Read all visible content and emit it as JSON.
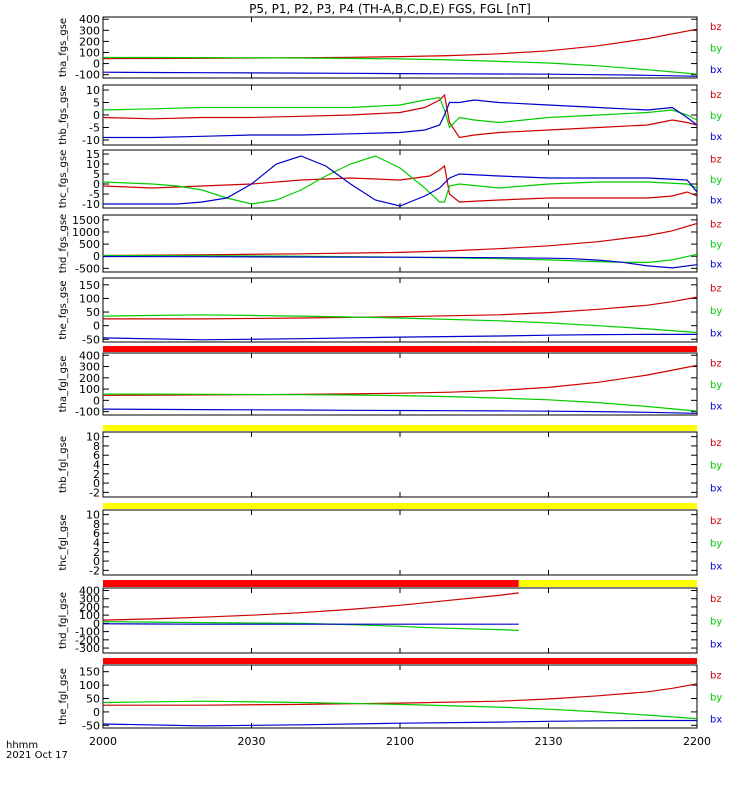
{
  "title": "P5, P1, P2, P3, P4 (TH-A,B,C,D,E) FGS, FGL [nT]",
  "time_axis": {
    "label_line1": "hhmm",
    "label_line2": "2021 Oct 17",
    "range_hhmm": [
      "2000",
      "2200"
    ],
    "tick_labels": [
      "2000",
      "2030",
      "2100",
      "2130",
      "2200"
    ],
    "ticks_min": [
      0,
      30,
      60,
      90,
      120
    ]
  },
  "colors": {
    "bz": "#cc0000",
    "by": "#00cc00",
    "bx": "#0000cc",
    "red_bar": "#ff0000",
    "yellow_bar": "#ffff00",
    "frame": "#000000"
  },
  "component_labels": [
    "bz",
    "by",
    "bx"
  ],
  "status_bars": [
    {
      "before_panel": 5,
      "segments": [
        {
          "from": 0,
          "to": 120,
          "color": "red_bar"
        }
      ]
    },
    {
      "before_panel": 6,
      "segments": [
        {
          "from": 0,
          "to": 120,
          "color": "yellow_bar"
        }
      ]
    },
    {
      "before_panel": 7,
      "segments": [
        {
          "from": 0,
          "to": 120,
          "color": "yellow_bar"
        }
      ]
    },
    {
      "before_panel": 8,
      "segments": [
        {
          "from": 0,
          "to": 84,
          "color": "red_bar"
        },
        {
          "from": 84,
          "to": 120,
          "color": "yellow_bar"
        }
      ]
    },
    {
      "before_panel": 9,
      "segments": [
        {
          "from": 0,
          "to": 120,
          "color": "red_bar"
        }
      ]
    }
  ],
  "chart_data": [
    {
      "type": "line",
      "ylabel": "tha_fgs_gse",
      "ylim": [
        -130,
        420
      ],
      "yticks": [
        400,
        300,
        200,
        100,
        0,
        -100
      ],
      "series": [
        {
          "name": "bz",
          "x": [
            0,
            10,
            20,
            30,
            40,
            50,
            60,
            70,
            80,
            90,
            100,
            110,
            120
          ],
          "y": [
            45,
            46,
            48,
            50,
            53,
            57,
            63,
            72,
            88,
            115,
            160,
            225,
            310
          ]
        },
        {
          "name": "by",
          "x": [
            0,
            10,
            20,
            30,
            40,
            50,
            60,
            70,
            80,
            90,
            100,
            110,
            120
          ],
          "y": [
            55,
            55,
            54,
            52,
            50,
            47,
            42,
            33,
            20,
            5,
            -20,
            -55,
            -95
          ]
        },
        {
          "name": "bx",
          "x": [
            0,
            10,
            20,
            30,
            40,
            50,
            60,
            70,
            80,
            90,
            100,
            110,
            120
          ],
          "y": [
            -78,
            -80,
            -82,
            -84,
            -86,
            -88,
            -90,
            -92,
            -94,
            -96,
            -100,
            -106,
            -115
          ]
        }
      ]
    },
    {
      "type": "line",
      "ylabel": "thb_fgs_gse",
      "ylim": [
        -12,
        12
      ],
      "yticks": [
        10,
        5,
        0,
        -5,
        -10
      ],
      "series": [
        {
          "name": "bz",
          "x": [
            0,
            10,
            20,
            30,
            40,
            50,
            60,
            65,
            68,
            69,
            70,
            72,
            75,
            80,
            90,
            100,
            110,
            115,
            118,
            120
          ],
          "y": [
            -1,
            -1.5,
            -1,
            -1,
            -0.5,
            0,
            1,
            3,
            6,
            8,
            -3,
            -9,
            -8,
            -7,
            -6,
            -5,
            -4,
            -2,
            -3,
            -4
          ]
        },
        {
          "name": "by",
          "x": [
            0,
            10,
            20,
            30,
            40,
            50,
            60,
            65,
            68,
            69,
            70,
            72,
            75,
            80,
            90,
            100,
            110,
            115,
            118,
            120
          ],
          "y": [
            2,
            2.5,
            3,
            3,
            3,
            3,
            4,
            6,
            7,
            2,
            -5,
            -1,
            -2,
            -3,
            -1,
            0,
            1,
            2,
            0,
            -2
          ]
        },
        {
          "name": "bx",
          "x": [
            0,
            10,
            20,
            30,
            40,
            50,
            60,
            65,
            68,
            69,
            70,
            72,
            75,
            80,
            90,
            100,
            110,
            115,
            118,
            120
          ],
          "y": [
            -9,
            -9,
            -8.5,
            -8,
            -8,
            -7.5,
            -7,
            -6,
            -4,
            0,
            5,
            5,
            6,
            5,
            4,
            3,
            2,
            3,
            -1,
            -4
          ]
        }
      ]
    },
    {
      "type": "line",
      "ylabel": "thc_fgs_gse",
      "ylim": [
        -12,
        17
      ],
      "yticks": [
        15,
        10,
        5,
        0,
        -5,
        -10
      ],
      "series": [
        {
          "name": "bz",
          "x": [
            0,
            10,
            20,
            30,
            40,
            50,
            60,
            66,
            68,
            69,
            70,
            72,
            80,
            90,
            100,
            110,
            115,
            118,
            120
          ],
          "y": [
            -1,
            -2,
            -1,
            0,
            2,
            3,
            2,
            4,
            7,
            9,
            -5,
            -9,
            -8,
            -7,
            -7,
            -7,
            -6,
            -4,
            -6
          ]
        },
        {
          "name": "by",
          "x": [
            0,
            5,
            10,
            15,
            20,
            25,
            30,
            35,
            40,
            45,
            50,
            55,
            60,
            65,
            68,
            69,
            70,
            72,
            80,
            90,
            100,
            110,
            118,
            120
          ],
          "y": [
            1,
            0.5,
            0,
            -1,
            -3,
            -7,
            -10,
            -8,
            -3,
            4,
            10,
            14,
            8,
            -2,
            -9,
            -9,
            -1,
            0,
            -2,
            0,
            1,
            1,
            0,
            -2
          ]
        },
        {
          "name": "bx",
          "x": [
            0,
            10,
            15,
            20,
            25,
            30,
            35,
            40,
            45,
            50,
            55,
            60,
            65,
            68,
            70,
            72,
            80,
            90,
            100,
            110,
            118,
            120
          ],
          "y": [
            -10,
            -10,
            -10,
            -9,
            -7,
            0,
            10,
            14,
            9,
            0,
            -8,
            -11,
            -6,
            -2,
            3,
            5,
            4,
            3,
            3,
            3,
            2,
            -4
          ]
        }
      ]
    },
    {
      "type": "line",
      "ylabel": "thd_fgs_gse",
      "ylim": [
        -650,
        1700
      ],
      "yticks": [
        1500,
        1000,
        500,
        0,
        -500
      ],
      "series": [
        {
          "name": "bz",
          "x": [
            0,
            20,
            40,
            60,
            70,
            80,
            90,
            100,
            110,
            115,
            120
          ],
          "y": [
            30,
            60,
            100,
            160,
            220,
            310,
            430,
            600,
            850,
            1050,
            1350
          ]
        },
        {
          "name": "by",
          "x": [
            0,
            20,
            40,
            60,
            80,
            90,
            100,
            105,
            110,
            115,
            120
          ],
          "y": [
            30,
            20,
            0,
            -40,
            -100,
            -150,
            -220,
            -250,
            -260,
            -150,
            80
          ]
        },
        {
          "name": "bx",
          "x": [
            0,
            20,
            40,
            60,
            80,
            90,
            95,
            100,
            105,
            110,
            115,
            120
          ],
          "y": [
            -10,
            -20,
            -30,
            -40,
            -60,
            -80,
            -100,
            -160,
            -250,
            -400,
            -480,
            -350
          ]
        }
      ]
    },
    {
      "type": "line",
      "ylabel": "the_fgs_gse",
      "ylim": [
        -60,
        175
      ],
      "yticks": [
        150,
        100,
        50,
        0,
        -50
      ],
      "series": [
        {
          "name": "bz",
          "x": [
            0,
            20,
            40,
            60,
            80,
            90,
            100,
            110,
            115,
            120
          ],
          "y": [
            25,
            25,
            28,
            33,
            40,
            48,
            60,
            75,
            88,
            105
          ]
        },
        {
          "name": "by",
          "x": [
            0,
            20,
            40,
            60,
            80,
            90,
            100,
            110,
            120
          ],
          "y": [
            35,
            40,
            35,
            28,
            18,
            10,
            0,
            -12,
            -25
          ]
        },
        {
          "name": "bx",
          "x": [
            0,
            20,
            40,
            60,
            80,
            90,
            100,
            110,
            120
          ],
          "y": [
            -45,
            -52,
            -48,
            -42,
            -38,
            -35,
            -33,
            -32,
            -32
          ]
        }
      ]
    },
    {
      "type": "line",
      "ylabel": "tha_fgl_gse",
      "ylim": [
        -130,
        420
      ],
      "yticks": [
        400,
        300,
        200,
        100,
        0,
        -100
      ],
      "series": [
        {
          "name": "bz",
          "x": [
            0,
            10,
            20,
            30,
            40,
            50,
            60,
            70,
            80,
            90,
            100,
            110,
            120
          ],
          "y": [
            45,
            46,
            48,
            50,
            53,
            57,
            63,
            72,
            88,
            115,
            160,
            225,
            310
          ]
        },
        {
          "name": "by",
          "x": [
            0,
            10,
            20,
            30,
            40,
            50,
            60,
            70,
            80,
            90,
            100,
            110,
            120
          ],
          "y": [
            55,
            55,
            54,
            52,
            50,
            47,
            42,
            33,
            20,
            5,
            -20,
            -55,
            -95
          ]
        },
        {
          "name": "bx",
          "x": [
            0,
            10,
            20,
            30,
            40,
            50,
            60,
            70,
            80,
            90,
            100,
            110,
            120
          ],
          "y": [
            -78,
            -80,
            -82,
            -84,
            -86,
            -88,
            -90,
            -92,
            -94,
            -96,
            -100,
            -106,
            -115
          ]
        }
      ]
    },
    {
      "type": "line",
      "ylabel": "thb_fgl_gse",
      "ylim": [
        -3,
        11
      ],
      "yticks": [
        10,
        8,
        6,
        4,
        2,
        0,
        -2
      ],
      "series": []
    },
    {
      "type": "line",
      "ylabel": "thc_fgl_gse",
      "ylim": [
        -3,
        11
      ],
      "yticks": [
        10,
        8,
        6,
        4,
        2,
        0,
        -2
      ],
      "series": []
    },
    {
      "type": "line",
      "ylabel": "thd_fgl_gse",
      "ylim": [
        -360,
        430
      ],
      "yticks": [
        400,
        300,
        200,
        100,
        0,
        -100,
        -200,
        -300
      ],
      "series": [
        {
          "name": "bz",
          "x": [
            0,
            10,
            20,
            30,
            40,
            50,
            60,
            70,
            80,
            84
          ],
          "y": [
            40,
            55,
            75,
            100,
            130,
            170,
            220,
            280,
            340,
            370
          ]
        },
        {
          "name": "by",
          "x": [
            0,
            10,
            20,
            30,
            40,
            50,
            60,
            65,
            70,
            80,
            84
          ],
          "y": [
            20,
            15,
            10,
            5,
            0,
            -15,
            -35,
            -50,
            -60,
            -75,
            -85
          ]
        },
        {
          "name": "bx",
          "x": [
            0,
            10,
            20,
            30,
            40,
            50,
            60,
            70,
            80,
            84
          ],
          "y": [
            -5,
            -8,
            -10,
            -10,
            -10,
            -10,
            -10,
            -10,
            -10,
            -10
          ]
        }
      ]
    },
    {
      "type": "line",
      "ylabel": "the_fgl_gse",
      "ylim": [
        -60,
        175
      ],
      "yticks": [
        150,
        100,
        50,
        0,
        -50
      ],
      "series": [
        {
          "name": "bz",
          "x": [
            0,
            20,
            40,
            60,
            80,
            90,
            100,
            110,
            115,
            120
          ],
          "y": [
            25,
            25,
            28,
            33,
            40,
            48,
            60,
            75,
            88,
            105
          ]
        },
        {
          "name": "by",
          "x": [
            0,
            20,
            40,
            60,
            80,
            90,
            100,
            110,
            120
          ],
          "y": [
            35,
            40,
            35,
            28,
            18,
            10,
            0,
            -12,
            -25
          ]
        },
        {
          "name": "bx",
          "x": [
            0,
            20,
            40,
            60,
            80,
            90,
            100,
            110,
            120
          ],
          "y": [
            -45,
            -52,
            -48,
            -42,
            -38,
            -35,
            -33,
            -32,
            -32
          ]
        }
      ]
    }
  ]
}
